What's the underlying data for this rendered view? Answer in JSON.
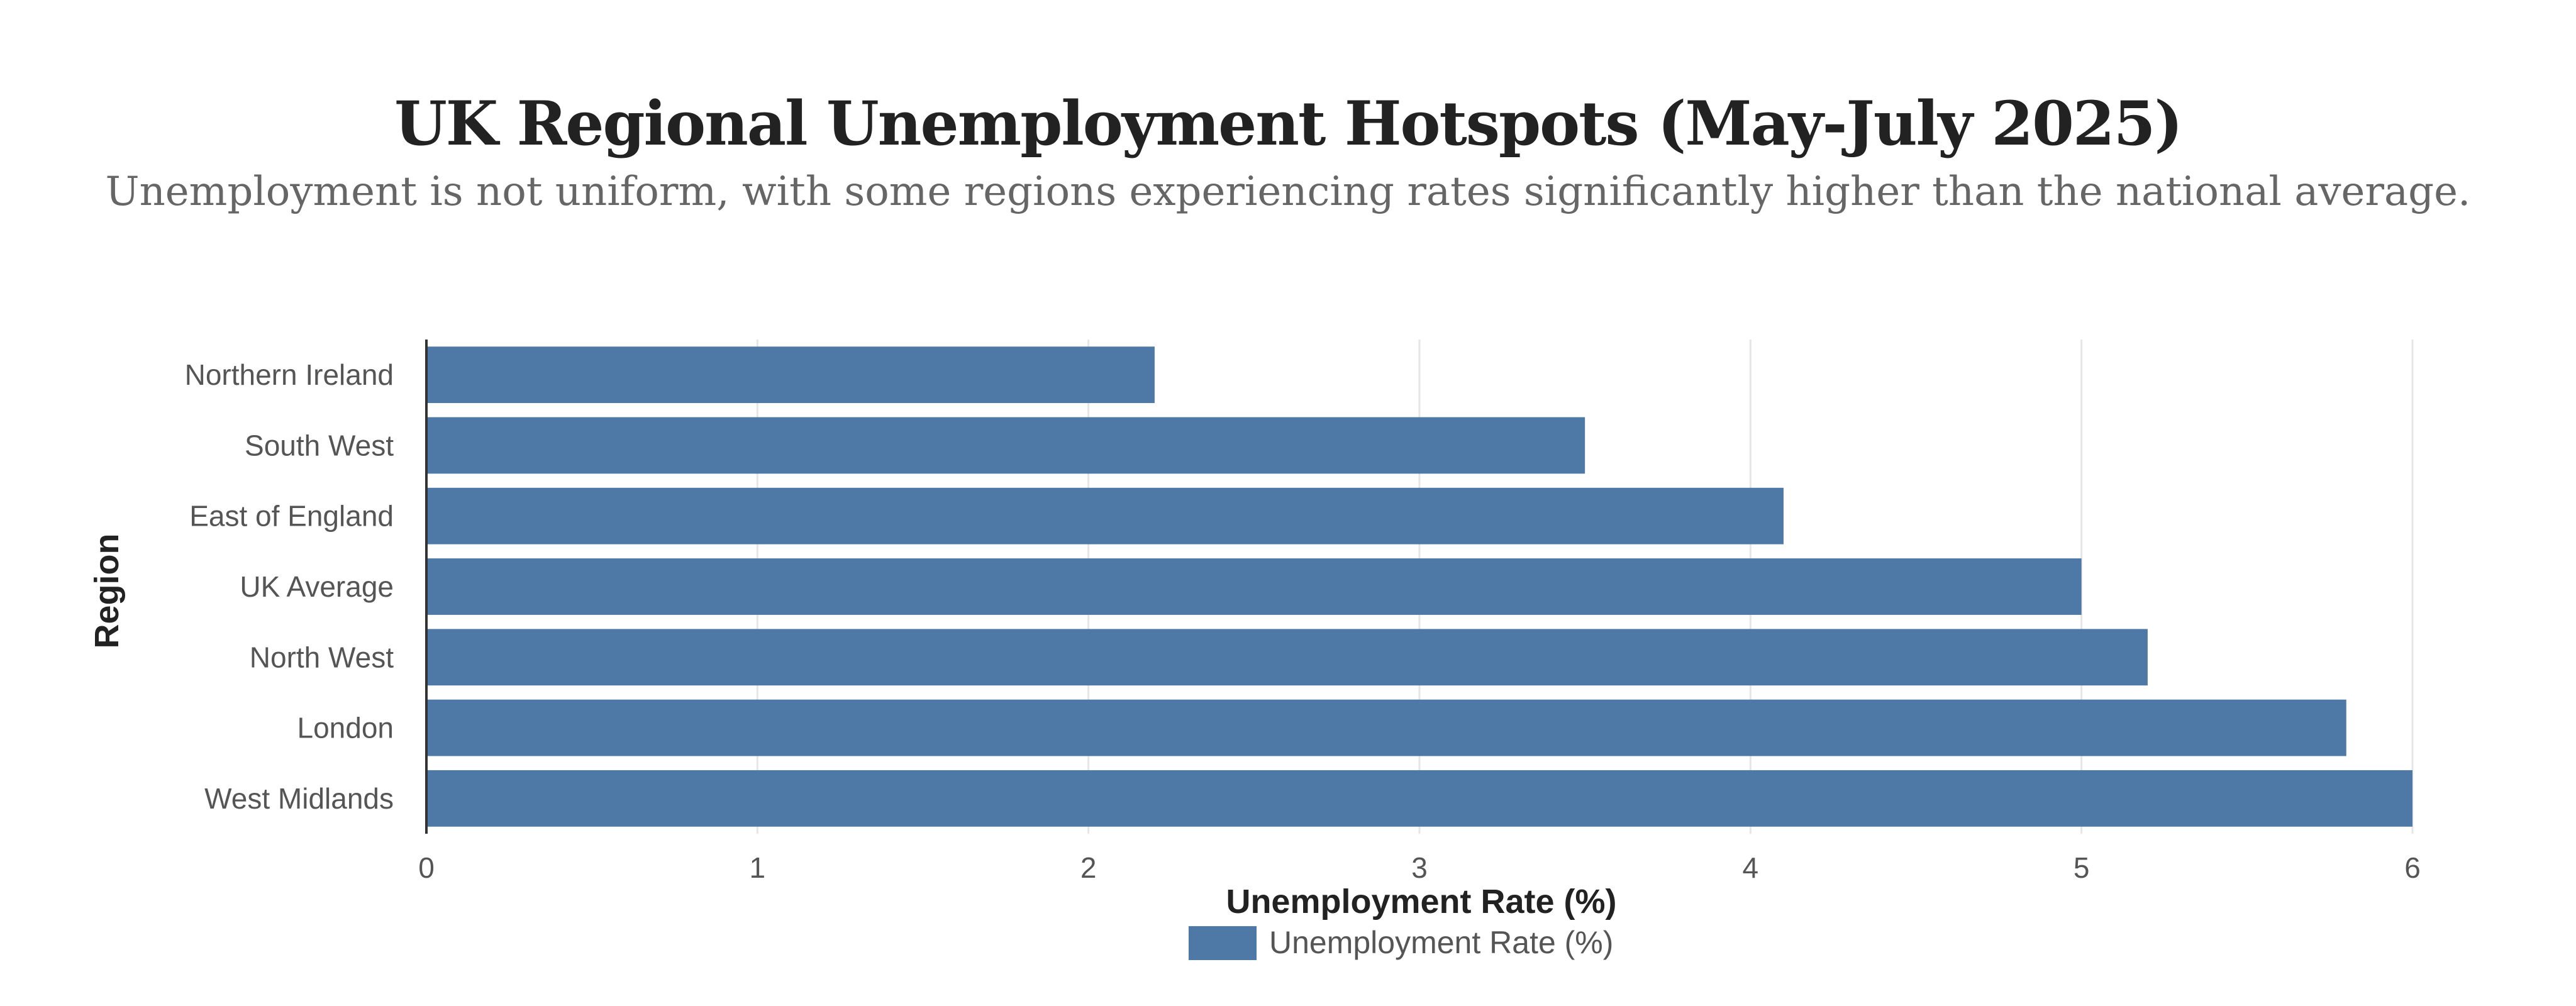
{
  "chart_data": {
    "type": "bar",
    "orientation": "horizontal",
    "title": "UK Regional Unemployment Hotspots (May-July 2025)",
    "subtitle": "Unemployment is not uniform, with some regions experiencing rates significantly higher than the national average.",
    "xlabel": "Unemployment Rate (%)",
    "ylabel": "Region",
    "categories": [
      "Northern Ireland",
      "South West",
      "East of England",
      "UK Average",
      "North West",
      "London",
      "West Midlands"
    ],
    "series": [
      {
        "name": "Unemployment Rate (%)",
        "values": [
          2.2,
          3.5,
          4.1,
          5.0,
          5.2,
          5.8,
          6.0
        ],
        "color": "#4e79a7"
      }
    ],
    "xlim": [
      0,
      6
    ],
    "xticks": [
      "0",
      "1",
      "2",
      "3",
      "4",
      "5",
      "6"
    ],
    "grid": true,
    "legend_position": "bottom-center"
  }
}
